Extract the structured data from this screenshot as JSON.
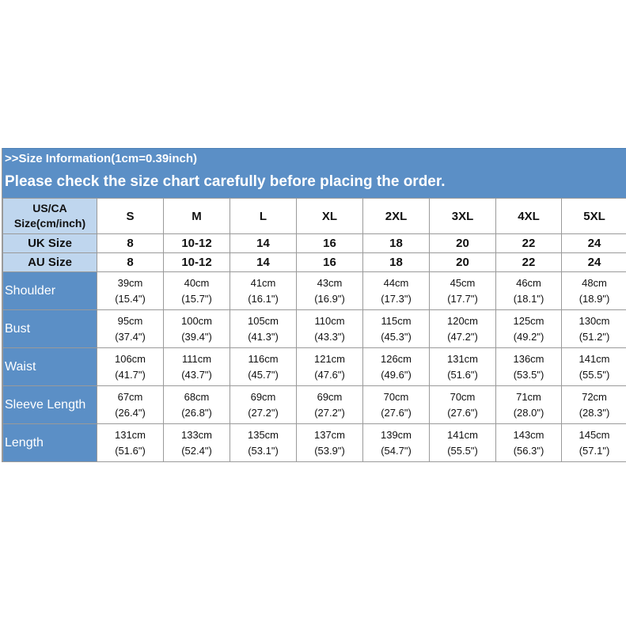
{
  "header": {
    "info": ">>Size Information(1cm=0.39inch)",
    "notice": "Please check the size chart carefully before placing the order."
  },
  "table": {
    "us_ca_label_line1": "US/CA",
    "us_ca_label_line2": "Size(cm/inch)",
    "sizes": [
      "S",
      "M",
      "L",
      "XL",
      "2XL",
      "3XL",
      "4XL",
      "5XL"
    ],
    "uk_label": "UK Size",
    "uk_sizes": [
      "8",
      "10-12",
      "14",
      "16",
      "18",
      "20",
      "22",
      "24"
    ],
    "au_label": "AU Size",
    "au_sizes": [
      "8",
      "10-12",
      "14",
      "16",
      "18",
      "20",
      "22",
      "24"
    ],
    "rows": [
      {
        "label": "Shoulder",
        "cm": [
          "39cm",
          "40cm",
          "41cm",
          "43cm",
          "44cm",
          "45cm",
          "46cm",
          "48cm"
        ],
        "inch": [
          "(15.4\")",
          "(15.7\")",
          "(16.1\")",
          "(16.9\")",
          "(17.3\")",
          "(17.7\")",
          "(18.1\")",
          "(18.9\")"
        ]
      },
      {
        "label": "Bust",
        "cm": [
          "95cm",
          "100cm",
          "105cm",
          "110cm",
          "115cm",
          "120cm",
          "125cm",
          "130cm"
        ],
        "inch": [
          "(37.4\")",
          "(39.4\")",
          "(41.3\")",
          "(43.3\")",
          "(45.3\")",
          "(47.2\")",
          "(49.2\")",
          "(51.2\")"
        ]
      },
      {
        "label": "Waist",
        "cm": [
          "106cm",
          "111cm",
          "116cm",
          "121cm",
          "126cm",
          "131cm",
          "136cm",
          "141cm"
        ],
        "inch": [
          "(41.7\")",
          "(43.7\")",
          "(45.7\")",
          "(47.6\")",
          "(49.6\")",
          "(51.6\")",
          "(53.5\")",
          "(55.5\")"
        ]
      },
      {
        "label": "Sleeve Length",
        "cm": [
          "67cm",
          "68cm",
          "69cm",
          "69cm",
          "70cm",
          "70cm",
          "71cm",
          "72cm"
        ],
        "inch": [
          "(26.4\")",
          "(26.8\")",
          "(27.2\")",
          "(27.2\")",
          "(27.6\")",
          "(27.6\")",
          "(28.0\")",
          "(28.3\")"
        ]
      },
      {
        "label": "Length",
        "cm": [
          "131cm",
          "133cm",
          "135cm",
          "137cm",
          "139cm",
          "141cm",
          "143cm",
          "145cm"
        ],
        "inch": [
          "(51.6\")",
          "(52.4\")",
          "(53.1\")",
          "(53.9\")",
          "(54.7\")",
          "(55.5\")",
          "(56.3\")",
          "(57.1\")"
        ]
      }
    ]
  },
  "colors": {
    "header_blue": "#5b8fc6",
    "light_blue": "#bfd6ee",
    "grid_line": "#9a9a9a"
  }
}
